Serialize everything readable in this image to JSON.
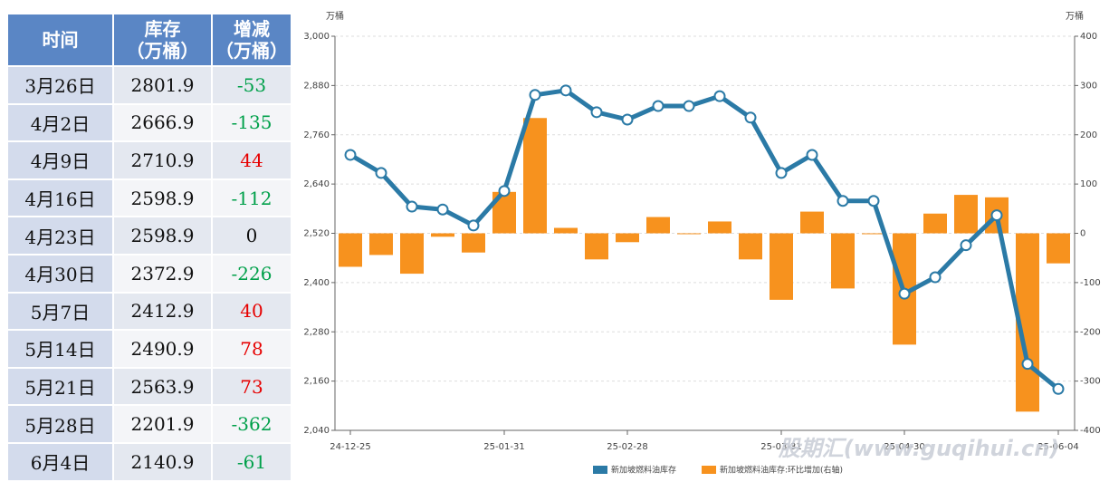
{
  "table": {
    "header": [
      [
        "时间"
      ],
      [
        "库存",
        "（万桶）"
      ],
      [
        "增减",
        "（万桶）"
      ]
    ],
    "rows": [
      [
        "3月26日",
        2801.9,
        -53
      ],
      [
        "4月2日",
        2666.9,
        -135
      ],
      [
        "4月9日",
        2710.9,
        44
      ],
      [
        "4月16日",
        2598.9,
        -112
      ],
      [
        "4月23日",
        2598.9,
        0
      ],
      [
        "4月30日",
        2372.9,
        -226
      ],
      [
        "5月7日",
        2412.9,
        40
      ],
      [
        "5月14日",
        2490.9,
        78
      ],
      [
        "5月21日",
        2563.9,
        73
      ],
      [
        "5月28日",
        2201.9,
        -362
      ],
      [
        "6月4日",
        2140.9,
        -61
      ]
    ]
  },
  "chart_data": {
    "type": "bar-line",
    "y_unit": "万桶",
    "y2_unit": "万桶",
    "watermark": "股期汇(www.guqihui.cn)",
    "categories": [
      "24-12-25",
      null,
      null,
      null,
      null,
      "25-01-31",
      null,
      null,
      null,
      "25-02-28",
      null,
      null,
      null,
      null,
      "25-03-31",
      null,
      null,
      null,
      "25-04-30",
      null,
      null,
      null,
      null,
      "25-06-04"
    ],
    "series": [
      {
        "name": "新加坡燃料油库存",
        "type": "line",
        "color": "#2b7aa6",
        "values": [
          2711,
          2667,
          2585,
          2578,
          2539,
          2623,
          2857,
          2868,
          2815,
          2797,
          2830,
          2830,
          2854,
          2801.9,
          2666.9,
          2710.9,
          2598.9,
          2598.9,
          2372.9,
          2412.9,
          2490.9,
          2563.9,
          2201.9,
          2140.9
        ]
      },
      {
        "name": "新加坡燃料油库存:环比增加(右轴)",
        "type": "bar",
        "axis": "y2",
        "color": "#f7921e",
        "values": [
          -68,
          -44,
          -82,
          -7,
          -39,
          84,
          234,
          11,
          -53,
          -18,
          33,
          0,
          24,
          -53,
          -135,
          44,
          -112,
          0,
          -226,
          40,
          78,
          73,
          -362,
          -61
        ]
      }
    ],
    "ylim": [
      2040,
      3000
    ],
    "yticks": [
      {
        "value": 2040,
        "label": "2,040"
      },
      {
        "value": 2160,
        "label": "2,160"
      },
      {
        "value": 2280,
        "label": "2,280"
      },
      {
        "value": 2400,
        "label": "2,400"
      },
      {
        "value": 2520,
        "label": "2,520"
      },
      {
        "value": 2640,
        "label": "2,640"
      },
      {
        "value": 2760,
        "label": "2,760"
      },
      {
        "value": 2880,
        "label": "2,880"
      },
      {
        "value": 3000,
        "label": "3,000"
      }
    ],
    "y2lim": [
      -400,
      400
    ],
    "y2ticks": [
      -400,
      -300,
      -200,
      -100,
      0,
      100,
      200,
      300,
      400
    ],
    "grid": true
  }
}
